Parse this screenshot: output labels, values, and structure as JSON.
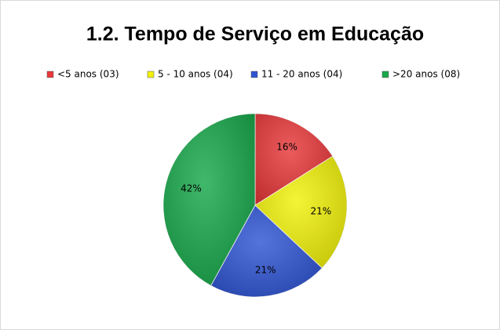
{
  "chart_data": {
    "type": "pie",
    "title": "1.2. Tempo de Serviço em Educação",
    "categories": [
      "<5 anos (03)",
      "5 - 10 anos (04)",
      "11 - 20 anos (04)",
      ">20 anos (08)"
    ],
    "values": [
      16,
      21,
      21,
      42
    ],
    "value_labels": [
      "16%",
      "21%",
      "21%",
      "42%"
    ],
    "colors": [
      "#e8383a",
      "#f2f20a",
      "#2f55d4",
      "#17a84a"
    ],
    "legend": "top"
  }
}
